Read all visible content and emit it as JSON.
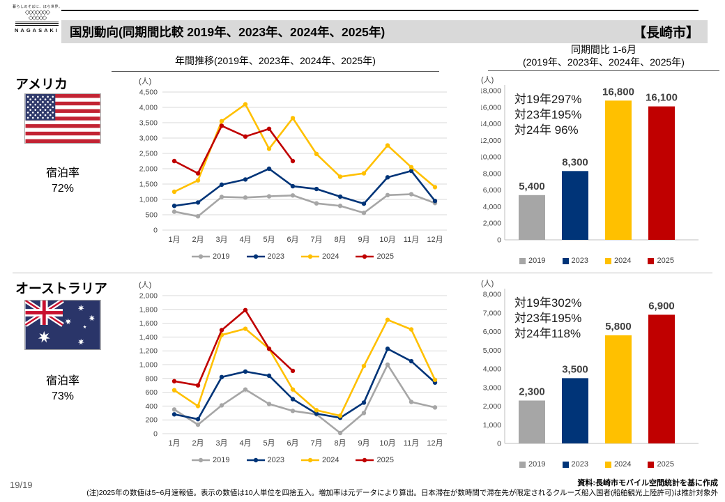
{
  "header": {
    "logo_tagline": "暮らしのそばに、ほら世界。",
    "logo_name": "NAGASAKI",
    "title": "国別動向(同期間比較 2019年、2023年、2024年、2025年)",
    "region": "【長崎市】"
  },
  "columns": {
    "line_header": "年間推移(2019年、2023年、2024年、2025年)",
    "bar_header_line1": "同期間比 1-6月",
    "bar_header_line2": "(2019年、2023年、2024年、2025年)"
  },
  "rows": [
    {
      "country": "アメリカ",
      "flag": "us",
      "stay_label": "宿泊率",
      "stay_rate": "72%"
    },
    {
      "country": "オーストラリア",
      "flag": "au",
      "stay_label": "宿泊率",
      "stay_rate": "73%"
    }
  ],
  "colors": {
    "2019": "#A6A6A6",
    "2023": "#003478",
    "2024": "#FFC000",
    "2025": "#C00000"
  },
  "chart_data": [
    {
      "id": "us-line",
      "type": "line",
      "unit": "(人)",
      "x": [
        "1月",
        "2月",
        "3月",
        "4月",
        "5月",
        "6月",
        "7月",
        "8月",
        "9月",
        "10月",
        "11月",
        "12月"
      ],
      "ylim": [
        0,
        4500
      ],
      "ystep": 500,
      "grid": true,
      "legend_position": "bottom",
      "series": [
        {
          "name": "2019",
          "color": "#A6A6A6",
          "values": [
            600,
            450,
            1080,
            1060,
            1100,
            1130,
            870,
            790,
            560,
            1140,
            1170,
            880
          ]
        },
        {
          "name": "2023",
          "color": "#003478",
          "values": [
            790,
            900,
            1480,
            1650,
            2000,
            1430,
            1340,
            1090,
            860,
            1720,
            1930,
            950
          ]
        },
        {
          "name": "2024",
          "color": "#FFC000",
          "values": [
            1250,
            1620,
            3550,
            4100,
            2650,
            3650,
            2480,
            1740,
            1850,
            2760,
            2050,
            1400
          ]
        },
        {
          "name": "2025",
          "color": "#C00000",
          "values": [
            2250,
            1850,
            3400,
            3050,
            3300,
            2250,
            null,
            null,
            null,
            null,
            null,
            null
          ]
        }
      ]
    },
    {
      "id": "us-bar",
      "type": "bar",
      "unit": "(人)",
      "categories": [
        "2019",
        "2023",
        "2024",
        "2025"
      ],
      "values": [
        5400,
        8300,
        16800,
        16100
      ],
      "value_labels": [
        "5,400",
        "8,300",
        "16,800",
        "16,100"
      ],
      "bar_colors": [
        "#A6A6A6",
        "#003478",
        "#FFC000",
        "#C00000"
      ],
      "ylim": [
        0,
        18000
      ],
      "ystep": 2000,
      "legend_position": "bottom",
      "annotations": [
        "対19年297%",
        "対23年195%",
        "対24年 96%"
      ]
    },
    {
      "id": "au-line",
      "type": "line",
      "unit": "(人)",
      "x": [
        "1月",
        "2月",
        "3月",
        "4月",
        "5月",
        "6月",
        "7月",
        "8月",
        "9月",
        "10月",
        "11月",
        "12月"
      ],
      "ylim": [
        0,
        2000
      ],
      "ystep": 200,
      "grid": true,
      "legend_position": "bottom",
      "series": [
        {
          "name": "2019",
          "color": "#A6A6A6",
          "values": [
            350,
            130,
            410,
            640,
            430,
            330,
            280,
            10,
            300,
            1000,
            460,
            380
          ]
        },
        {
          "name": "2023",
          "color": "#003478",
          "values": [
            280,
            210,
            820,
            900,
            840,
            500,
            290,
            230,
            450,
            1230,
            1050,
            740
          ]
        },
        {
          "name": "2024",
          "color": "#FFC000",
          "values": [
            630,
            400,
            1430,
            1520,
            1230,
            640,
            340,
            260,
            980,
            1650,
            1510,
            780
          ]
        },
        {
          "name": "2025",
          "color": "#C00000",
          "values": [
            760,
            700,
            1500,
            1790,
            1230,
            910,
            null,
            null,
            null,
            null,
            null,
            null
          ]
        }
      ]
    },
    {
      "id": "au-bar",
      "type": "bar",
      "unit": "(人)",
      "categories": [
        "2019",
        "2023",
        "2024",
        "2025"
      ],
      "values": [
        2300,
        3500,
        5800,
        6900
      ],
      "value_labels": [
        "2,300",
        "3,500",
        "5,800",
        "6,900"
      ],
      "bar_colors": [
        "#A6A6A6",
        "#003478",
        "#FFC000",
        "#C00000"
      ],
      "ylim": [
        0,
        8000
      ],
      "ystep": 1000,
      "legend_position": "bottom",
      "annotations": [
        "対19年302%",
        "対23年195%",
        "対24年118%"
      ]
    }
  ],
  "footer": {
    "page": "19/19",
    "source": "資料:長崎市モバイル空間統計を基に作成",
    "note": "(注)2025年の数値は5~6月速報値。表示の数値は10人単位を四捨五入。増加率は元データにより算出。日本滞在が数時間で滞在先が限定されるクルーズ船入国者(船舶観光上陸許可)は推計対象外"
  }
}
